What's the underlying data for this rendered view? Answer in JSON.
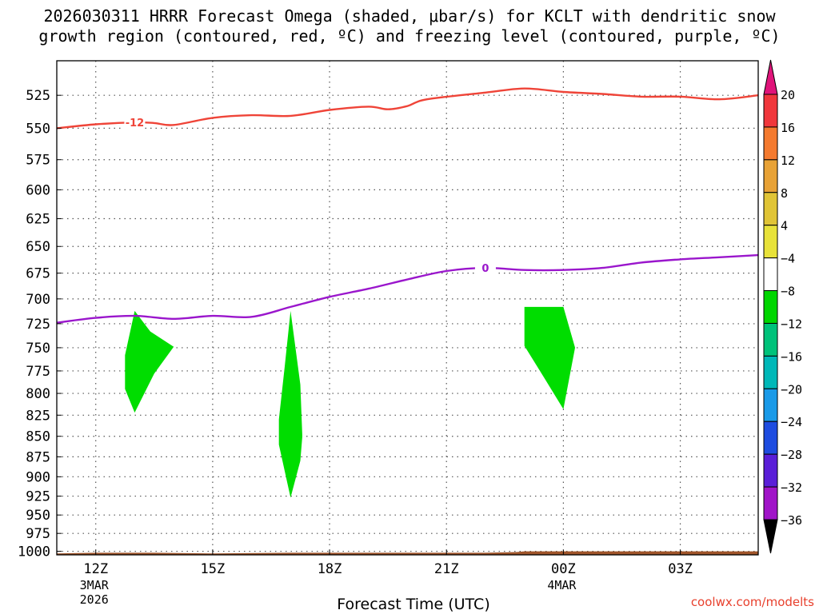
{
  "chart_data": {
    "type": "heatmap",
    "title_line1": "2026030311 HRRR Forecast Omega (shaded, μbar/s) for KCLT with dendritic snow",
    "title_line2": "growth region (contoured, red, ºC) and freezing level (contoured, purple, ºC)",
    "xlabel": "Forecast Time (UTC)",
    "x_ticks": [
      {
        "hour": 12,
        "label": "12Z",
        "sub1": "3MAR",
        "sub2": "2026"
      },
      {
        "hour": 15,
        "label": "15Z",
        "sub1": "",
        "sub2": ""
      },
      {
        "hour": 18,
        "label": "18Z",
        "sub1": "",
        "sub2": ""
      },
      {
        "hour": 21,
        "label": "21Z",
        "sub1": "",
        "sub2": ""
      },
      {
        "hour": 24,
        "label": "00Z",
        "sub1": "4MAR",
        "sub2": ""
      },
      {
        "hour": 27,
        "label": "03Z",
        "sub1": "",
        "sub2": ""
      }
    ],
    "xlim": [
      11,
      29
    ],
    "y_ticks": [
      525,
      550,
      575,
      600,
      625,
      650,
      675,
      700,
      725,
      750,
      775,
      800,
      825,
      850,
      875,
      900,
      925,
      950,
      975,
      1000
    ],
    "ylim_hpa": [
      1005,
      500
    ],
    "y_scale": "log-pressure",
    "grid": true,
    "colorbar": {
      "labels": [
        "20",
        "16",
        "12",
        "8",
        "4",
        "−4",
        "−8",
        "−12",
        "−16",
        "−20",
        "−24",
        "−28",
        "−32",
        "−36"
      ],
      "colors": [
        "#f0373c",
        "#f47a2f",
        "#e8a236",
        "#e0c436",
        "#e8e23a",
        "#ffffff",
        "#00d600",
        "#00c27a",
        "#00b8b8",
        "#1a9ae8",
        "#1e4ce0",
        "#5a1ed8",
        "#a014c8",
        "#aaaaaa"
      ],
      "top_arrow_color": "#e0147a",
      "bottom_arrow_color": "#000000"
    },
    "series": [
      {
        "name": "-12",
        "color": "#ef4438",
        "points": [
          [
            11,
            550
          ],
          [
            12,
            547
          ],
          [
            13,
            545.5
          ],
          [
            13.5,
            546
          ],
          [
            14,
            547.5
          ],
          [
            15,
            542
          ],
          [
            16,
            540
          ],
          [
            17,
            540.5
          ],
          [
            18,
            536
          ],
          [
            19,
            533.5
          ],
          [
            19.5,
            535.5
          ],
          [
            20,
            533
          ],
          [
            20.5,
            528
          ],
          [
            22,
            523
          ],
          [
            23,
            520
          ],
          [
            24,
            522.5
          ],
          [
            25,
            524
          ],
          [
            26,
            526
          ],
          [
            27,
            526
          ],
          [
            28,
            528
          ],
          [
            29,
            525
          ]
        ],
        "label_at_hour": 13
      },
      {
        "name": "0",
        "color": "#9a16cc",
        "points": [
          [
            11,
            724
          ],
          [
            12,
            719
          ],
          [
            13,
            717
          ],
          [
            14,
            720
          ],
          [
            15,
            717
          ],
          [
            16,
            718
          ],
          [
            17,
            708
          ],
          [
            18,
            698
          ],
          [
            19,
            690
          ],
          [
            20,
            681
          ],
          [
            21,
            673
          ],
          [
            22,
            670
          ],
          [
            23,
            672
          ],
          [
            24,
            672
          ],
          [
            25,
            670
          ],
          [
            26,
            665
          ],
          [
            27,
            662
          ],
          [
            28,
            660
          ],
          [
            29,
            658
          ]
        ],
        "label_at_hour": 22
      }
    ],
    "omega_regions": [
      {
        "value_band": "-8 to -4",
        "color": "#00dd00",
        "points": [
          [
            13,
            712
          ],
          [
            13.4,
            733
          ],
          [
            14,
            749
          ],
          [
            13.5,
            778
          ],
          [
            13,
            822
          ],
          [
            12.75,
            795
          ],
          [
            12.75,
            758
          ]
        ]
      },
      {
        "value_band": "-8 to -4",
        "color": "#00dd00",
        "points": [
          [
            17,
            712
          ],
          [
            17.25,
            790
          ],
          [
            17.3,
            850
          ],
          [
            17.25,
            880
          ],
          [
            17,
            927
          ],
          [
            16.7,
            860
          ],
          [
            16.7,
            830
          ],
          [
            16.85,
            770
          ]
        ]
      },
      {
        "value_band": "-8 to -4",
        "color": "#00dd00",
        "points": [
          [
            23,
            708
          ],
          [
            24,
            708
          ],
          [
            24.3,
            750
          ],
          [
            24,
            818
          ],
          [
            23.5,
            782
          ],
          [
            23,
            748
          ]
        ]
      }
    ],
    "terrain": {
      "color": "#a0552a",
      "points": [
        [
          11,
          1003
        ],
        [
          12,
          1002
        ],
        [
          13.5,
          1002
        ],
        [
          15,
          1003
        ],
        [
          17,
          1002
        ],
        [
          22,
          1002
        ],
        [
          22.8,
          1001
        ],
        [
          23,
          1000
        ],
        [
          29,
          1000
        ]
      ]
    }
  },
  "credit": "coolwx.com/modelts"
}
